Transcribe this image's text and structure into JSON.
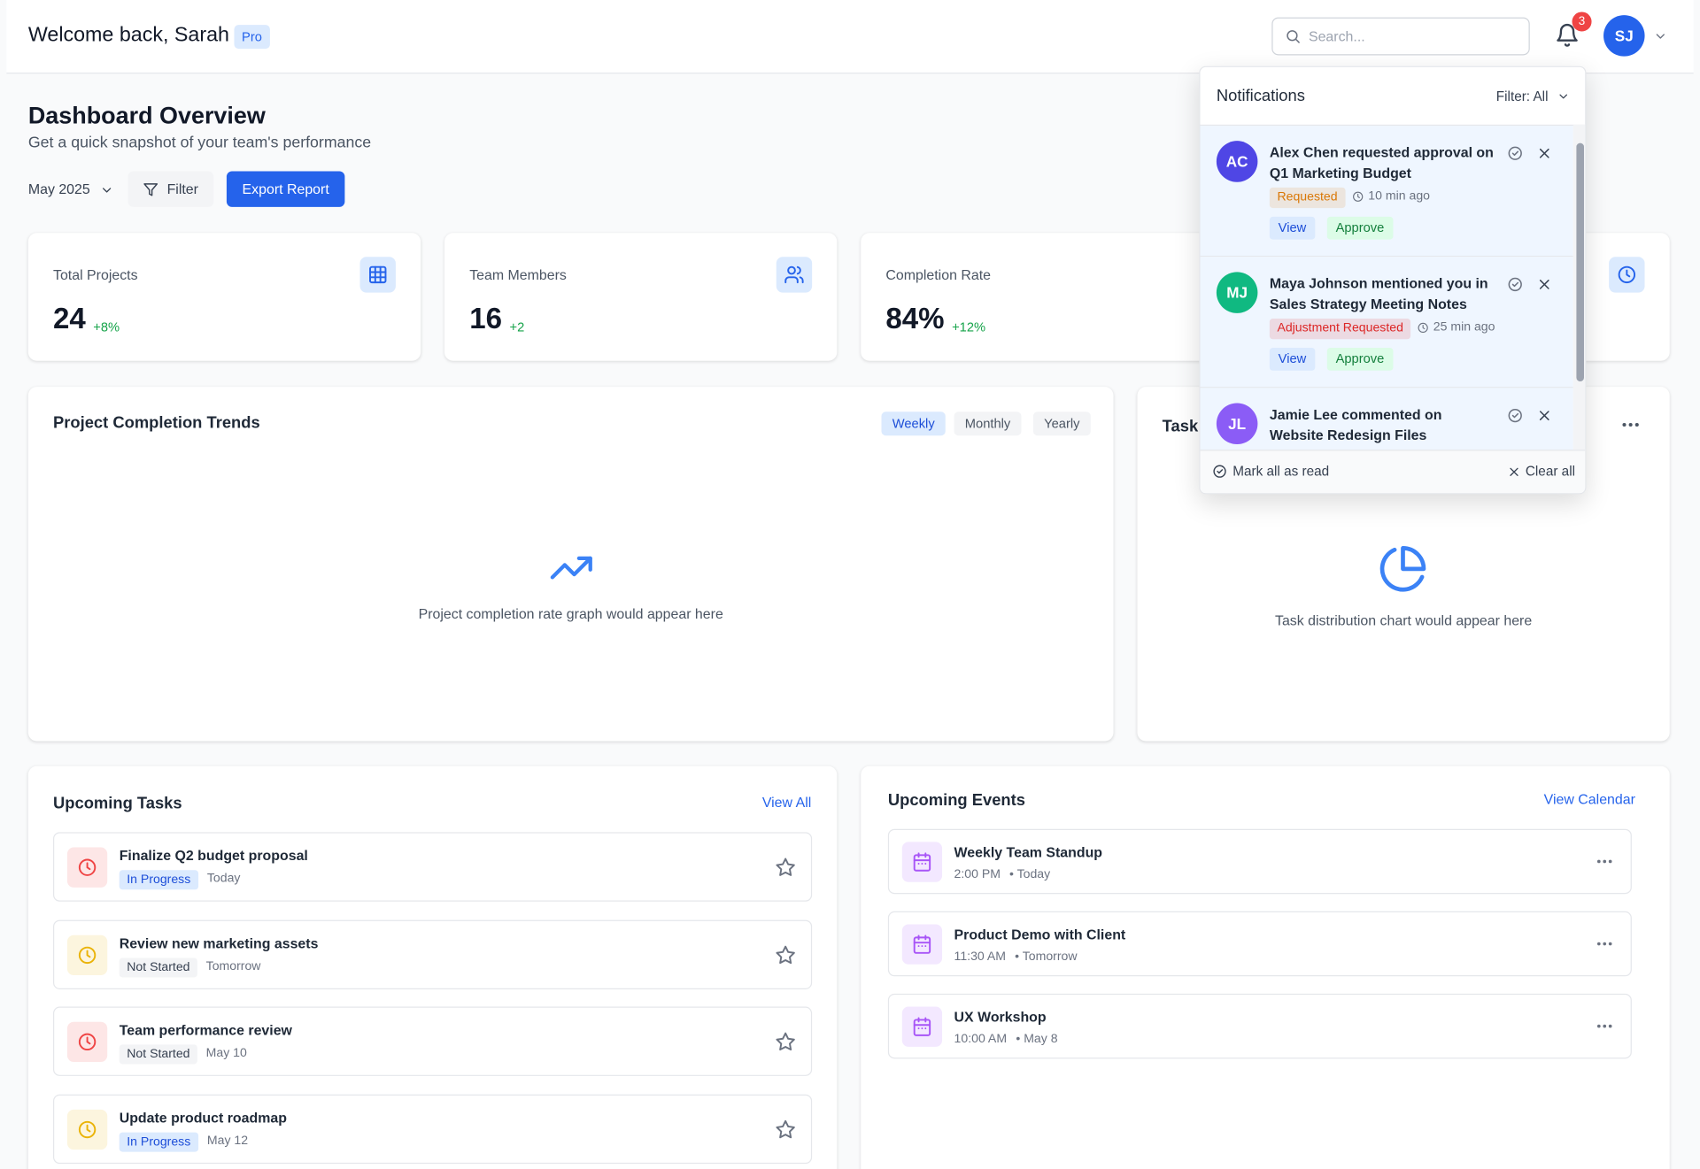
{
  "header": {
    "greeting": "Welcome back, Sarah",
    "badge": "Pro",
    "search_placeholder": "Search...",
    "notification_count": "3",
    "avatar": "SJ"
  },
  "page": {
    "title": "Dashboard Overview",
    "subtitle": "Get a quick snapshot of your team's performance",
    "period": "May 2025",
    "filter": "Filter",
    "export": "Export Report"
  },
  "stats": [
    {
      "label": "Total Projects",
      "value": "24",
      "change": "+8%"
    },
    {
      "label": "Team Members",
      "value": "16",
      "change": "+2"
    },
    {
      "label": "Completion Rate",
      "value": "84%",
      "change": "+12%"
    }
  ],
  "trends": {
    "title": "Project Completion Trends",
    "tabs": [
      "Weekly",
      "Monthly",
      "Yearly"
    ],
    "placeholder": "Project completion rate graph would appear here"
  },
  "distribution": {
    "title": "Task",
    "placeholder": "Task distribution chart would appear here"
  },
  "tasks": {
    "title": "Upcoming Tasks",
    "link": "View All",
    "items": [
      {
        "title": "Finalize Q2 budget proposal",
        "status": "In Progress",
        "due": "Today",
        "color": "#ef4444"
      },
      {
        "title": "Review new marketing assets",
        "status": "Not Started",
        "due": "Tomorrow",
        "color": "#eab308"
      },
      {
        "title": "Team performance review",
        "status": "Not Started",
        "due": "May 10",
        "color": "#ef4444"
      },
      {
        "title": "Update product roadmap",
        "status": "In Progress",
        "due": "May 12",
        "color": "#eab308"
      }
    ]
  },
  "events": {
    "title": "Upcoming Events",
    "link": "View Calendar",
    "items": [
      {
        "title": "Weekly Team Standup",
        "time": "2:00 PM",
        "day": "Today"
      },
      {
        "title": "Product Demo with Client",
        "time": "11:30 AM",
        "day": "Tomorrow"
      },
      {
        "title": "UX Workshop",
        "time": "10:00 AM",
        "day": "May 8"
      }
    ]
  },
  "notifications": {
    "title": "Notifications",
    "filter": "Filter: All",
    "mark_read": "Mark all as read",
    "clear": "Clear all",
    "items": [
      {
        "initials": "AC",
        "color": "#4f46e5",
        "text": "Alex Chen requested approval on Q1 Marketing Budget",
        "status": "Requested",
        "status_color": "#d97706",
        "time": "10 min ago",
        "actions": [
          "View",
          "Approve"
        ]
      },
      {
        "initials": "MJ",
        "color": "#10b981",
        "text": "Maya Johnson mentioned you in Sales Strategy Meeting Notes",
        "status": "Adjustment Requested",
        "status_color": "#dc2626",
        "time": "25 min ago",
        "actions": [
          "View",
          "Approve"
        ]
      },
      {
        "initials": "JL",
        "color": "#8b5cf6",
        "text": "Jamie Lee commented on Website Redesign Files"
      }
    ]
  }
}
